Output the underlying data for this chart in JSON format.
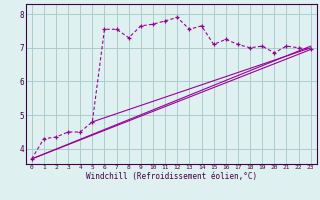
{
  "xlabel": "Windchill (Refroidissement éolien,°C)",
  "bg_color": "#dff0f0",
  "grid_color": "#aacccc",
  "line_color": "#990099",
  "border_color": "#440044",
  "x_ticks": [
    0,
    1,
    2,
    3,
    4,
    5,
    6,
    7,
    8,
    9,
    10,
    11,
    12,
    13,
    14,
    15,
    16,
    17,
    18,
    19,
    20,
    21,
    22,
    23
  ],
  "y_ticks": [
    4,
    5,
    6,
    7,
    8
  ],
  "ylim": [
    3.55,
    8.3
  ],
  "xlim": [
    -0.5,
    23.5
  ],
  "main_line_x": [
    0,
    1,
    2,
    3,
    4,
    5,
    6,
    7,
    8,
    9,
    10,
    11,
    12,
    13,
    14,
    15,
    16,
    17,
    18,
    19,
    20,
    21,
    22,
    23
  ],
  "main_line_y": [
    3.7,
    4.3,
    4.35,
    4.5,
    4.5,
    4.8,
    7.55,
    7.55,
    7.3,
    7.65,
    7.7,
    7.8,
    7.9,
    7.55,
    7.65,
    7.1,
    7.25,
    7.1,
    7.0,
    7.05,
    6.85,
    7.05,
    7.0,
    6.95
  ],
  "line1_x": [
    0,
    23
  ],
  "line1_y": [
    3.7,
    7.05
  ],
  "line2_x": [
    0,
    23
  ],
  "line2_y": [
    3.7,
    6.95
  ],
  "line3_x": [
    5,
    23
  ],
  "line3_y": [
    4.8,
    7.0
  ]
}
